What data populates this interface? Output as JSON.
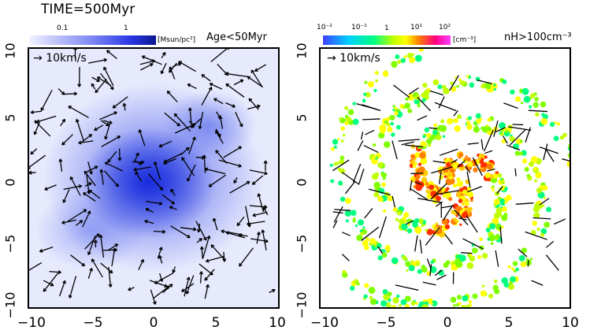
{
  "title": "TIME=500Myr",
  "left_panel": {
    "colorbar_ticks": [
      "0.1",
      "1"
    ],
    "colorbar_unit": "[Msun/pc²]",
    "label": "Age<50Myr",
    "velocity_label": "10km/s",
    "colorbar_colors": [
      "#f0f0ff",
      "#7c86f4",
      "#2a37e6",
      "#0c1890"
    ]
  },
  "right_panel": {
    "colorbar_ticks": [
      "10⁻²",
      "10⁻¹",
      "1",
      "10¹",
      "10²"
    ],
    "colorbar_unit": "[cm⁻³]",
    "label": "nH>100cm⁻³",
    "velocity_label": "10km/s",
    "colorbar_colors": [
      "#4040ff",
      "#00d0ff",
      "#00ff80",
      "#c0ff00",
      "#ffff00",
      "#ff8000",
      "#ff0080",
      "#ff40ff"
    ]
  },
  "axes": {
    "x_ticks": [
      "−10",
      "−5",
      "0",
      "5",
      "10"
    ],
    "y_ticks": [
      "10",
      "5",
      "0",
      "−5",
      "−10"
    ]
  }
}
